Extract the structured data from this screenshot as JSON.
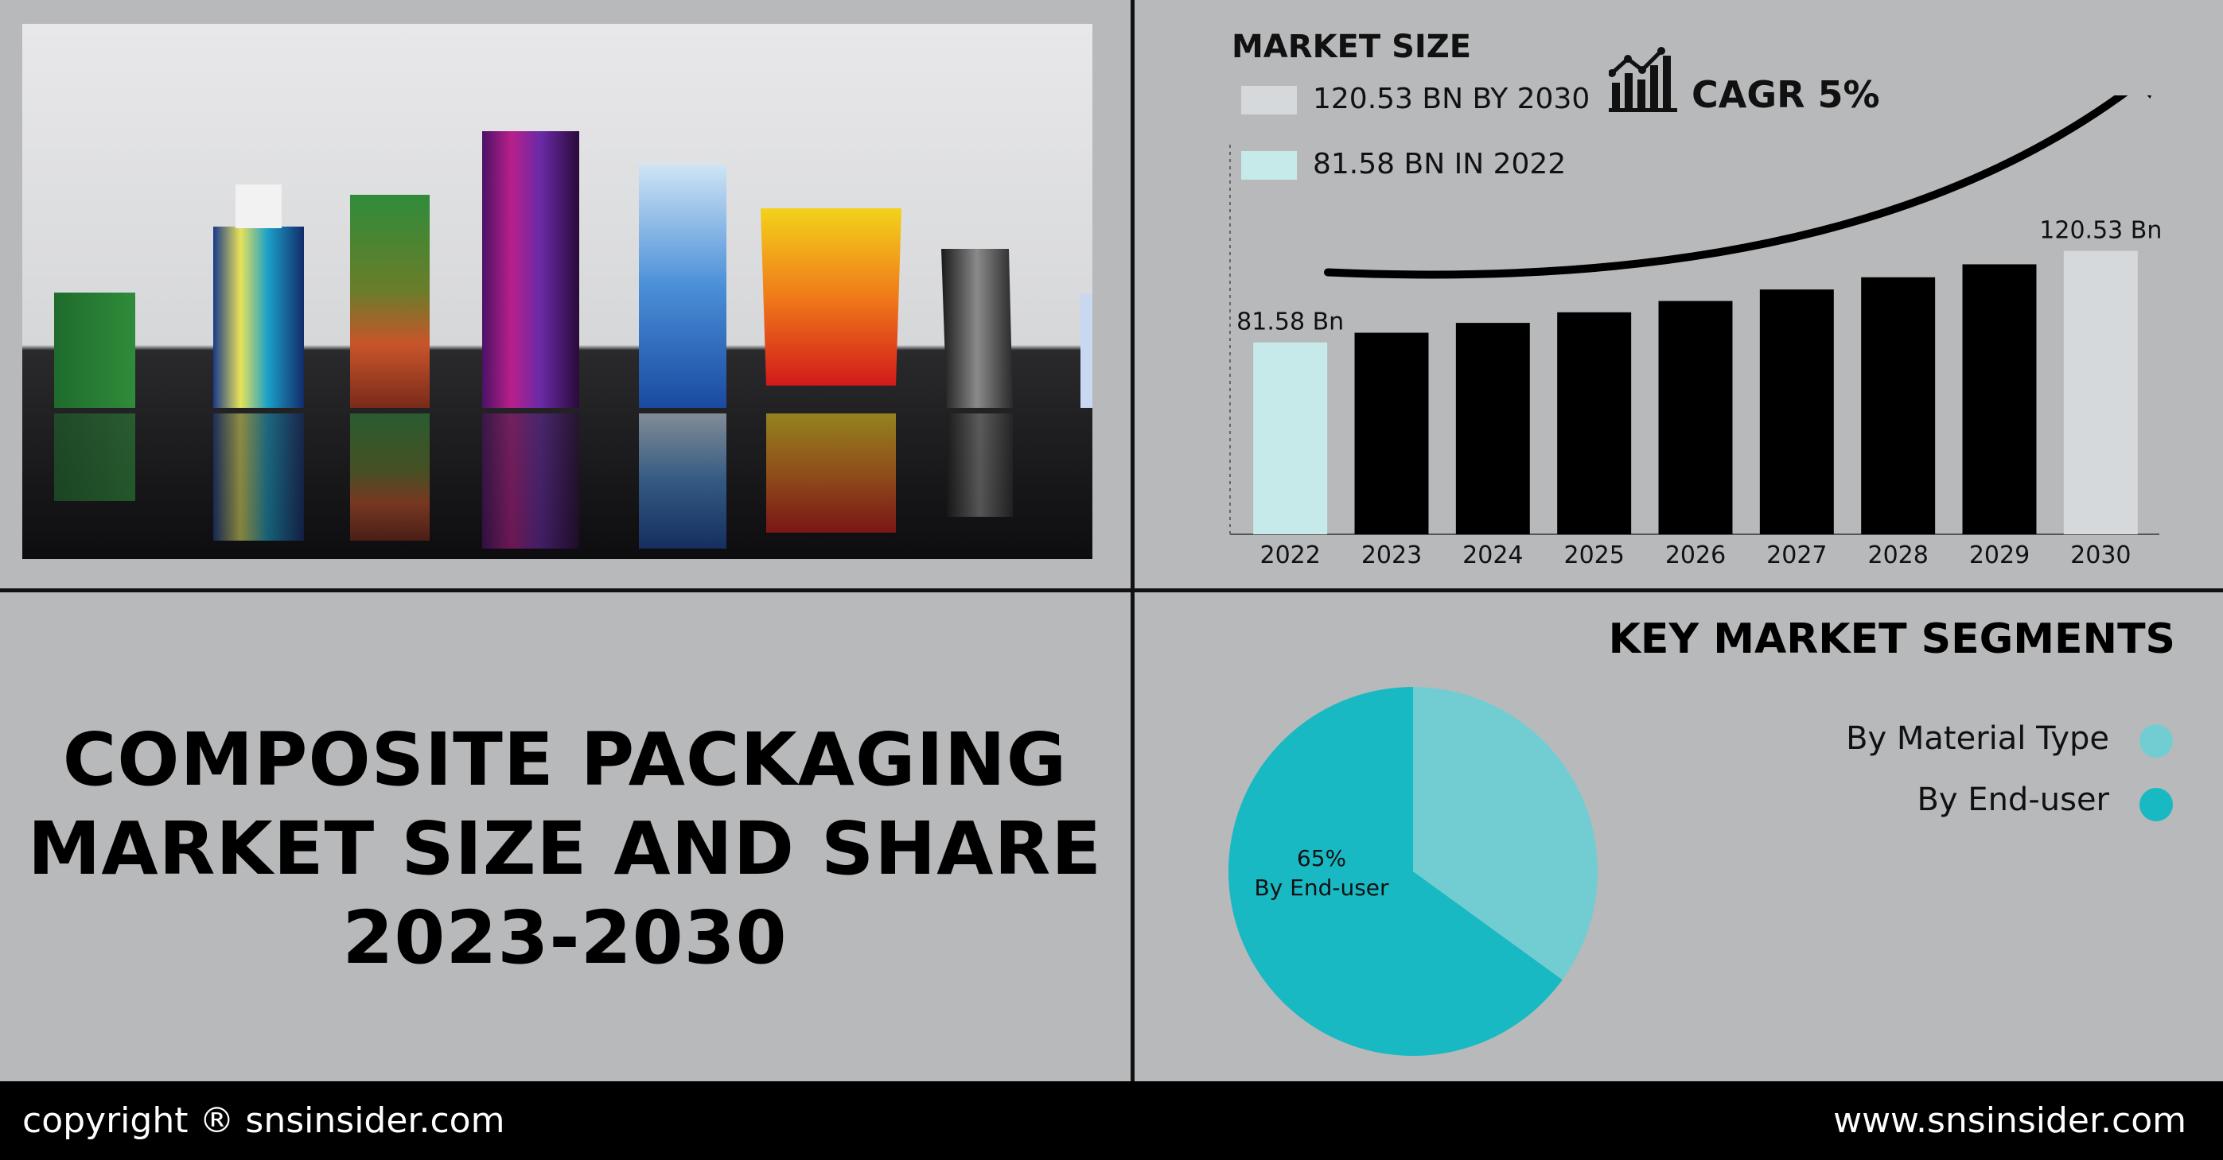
{
  "title": {
    "line1": "COMPOSITE PACKAGING",
    "line2": "MARKET SIZE AND SHARE",
    "line3": "2023-2030"
  },
  "market_size": {
    "heading": "MARKET SIZE",
    "legend": [
      {
        "label": "120.53 BN BY 2030",
        "color": "#d5d9dc"
      },
      {
        "label": "81.58 BN IN 2022",
        "color": "#c6eaea"
      }
    ],
    "cagr": "CAGR 5%",
    "icon": "bar-chart-trend-icon"
  },
  "segments": {
    "heading": "KEY MARKET SEGMENTS",
    "legend": [
      {
        "label": "By Material Type",
        "color": "#72cdd3"
      },
      {
        "label": "By End-user",
        "color": "#19b9c3"
      }
    ]
  },
  "footer": {
    "copyright": "copyright ® snsinsider.com",
    "website": "www.snsinsider.com"
  },
  "colors": {
    "background": "#b8b9bb",
    "bar": "#000000",
    "bar_first": "#c6eaea",
    "bar_last": "#d5d9dc",
    "pie_end_user": "#19b9c3",
    "pie_material": "#72cdd3"
  },
  "chart_data": [
    {
      "type": "bar",
      "categories": [
        "2022",
        "2023",
        "2024",
        "2025",
        "2026",
        "2027",
        "2028",
        "2029",
        "2030"
      ],
      "values": [
        81.58,
        85.7,
        89.9,
        94.4,
        99.2,
        104.1,
        109.3,
        114.8,
        120.53
      ],
      "data_labels": {
        "2022": "81.58 Bn",
        "2030": "120.53 Bn"
      },
      "title": "MARKET SIZE",
      "xlabel": "",
      "ylabel": "",
      "ylim": [
        0,
        142
      ],
      "grid": false
    },
    {
      "type": "pie",
      "categories": [
        "By Material Type",
        "By End-user"
      ],
      "values": [
        35,
        65
      ],
      "data_labels": [
        {
          "category": "By End-user",
          "percent": "65%",
          "text": "By End-user"
        }
      ],
      "legend_position": "right"
    }
  ]
}
